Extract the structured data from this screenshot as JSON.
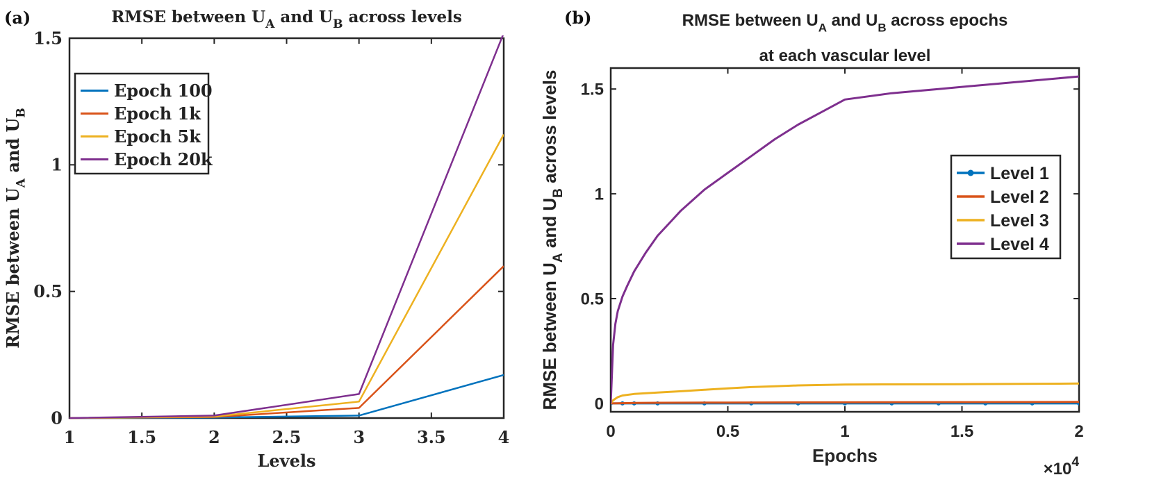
{
  "chart_data": [
    {
      "panel_label": "(a)",
      "type": "line",
      "title": {
        "pre": "RMSE between U",
        "sub1": "A",
        "mid": " and U",
        "sub2": "B",
        "post": " across levels"
      },
      "xlabel": "Levels",
      "ylabel": {
        "pre": "RMSE between U",
        "sub1": "A",
        "mid": " and U",
        "sub2": "B",
        "post": ""
      },
      "xlim": [
        1,
        4
      ],
      "ylim": [
        0,
        1.5
      ],
      "xticks": [
        1,
        1.5,
        2,
        2.5,
        3,
        3.5,
        4
      ],
      "xtick_labels": [
        "1",
        "1.5",
        "2",
        "2.5",
        "3",
        "3.5",
        "4"
      ],
      "yticks": [
        0,
        0.5,
        1,
        1.5
      ],
      "ytick_labels": [
        "0",
        "0.5",
        "1",
        "1.5"
      ],
      "grid": false,
      "legend_position": "upper-left",
      "x": [
        1,
        2,
        3,
        4
      ],
      "series": [
        {
          "name": "Epoch 100",
          "color": "#0072BD",
          "values": [
            0,
            0.002,
            0.01,
            0.17
          ]
        },
        {
          "name": "Epoch 1k",
          "color": "#D95319",
          "values": [
            0,
            0.004,
            0.04,
            0.6
          ]
        },
        {
          "name": "Epoch 5k",
          "color": "#EDB120",
          "values": [
            0,
            0.006,
            0.065,
            1.12
          ]
        },
        {
          "name": "Epoch 20k",
          "color": "#7E2F8E",
          "values": [
            0,
            0.01,
            0.095,
            1.52
          ]
        }
      ]
    },
    {
      "panel_label": "(b)",
      "type": "line",
      "title": {
        "pre": "RMSE between U",
        "sub1": "A",
        "mid": " and U",
        "sub2": "B",
        "post": " across epochs"
      },
      "title_line2": "at each vascular level",
      "xlabel": "Epochs",
      "x_multiplier": {
        "base": "×10",
        "exp": "4"
      },
      "ylabel": {
        "pre": "RMSE between U",
        "sub1": "A",
        "mid": " and U",
        "sub2": "B",
        "post": " across levels"
      },
      "xlim": [
        0,
        20000
      ],
      "ylim": [
        -0.04,
        1.6
      ],
      "xticks": [
        0,
        5000,
        10000,
        15000,
        20000
      ],
      "xtick_labels": [
        "0",
        "0.5",
        "1",
        "1.5",
        "2"
      ],
      "yticks": [
        0,
        0.5,
        1,
        1.5
      ],
      "ytick_labels": [
        "0",
        "0.5",
        "1",
        "1.5"
      ],
      "grid": false,
      "legend_position": "right",
      "series": [
        {
          "name": "Level 1",
          "color": "#0072BD",
          "marker": "dot",
          "x": [
            0,
            500,
            1000,
            2000,
            4000,
            6000,
            8000,
            10000,
            12000,
            14000,
            16000,
            18000,
            20000
          ],
          "values": [
            0,
            0,
            0,
            0,
            0,
            0,
            0,
            0,
            0,
            0,
            0,
            0,
            0
          ]
        },
        {
          "name": "Level 2",
          "color": "#D95319",
          "x": [
            0,
            500,
            1000,
            2000,
            5000,
            10000,
            15000,
            20000
          ],
          "values": [
            0,
            0.001,
            0.002,
            0.003,
            0.004,
            0.005,
            0.006,
            0.007
          ]
        },
        {
          "name": "Level 3",
          "color": "#EDB120",
          "x": [
            0,
            100,
            300,
            500,
            1000,
            2000,
            3000,
            4000,
            5000,
            6000,
            7000,
            8000,
            9000,
            10000,
            12000,
            15000,
            20000
          ],
          "values": [
            0,
            0.015,
            0.03,
            0.038,
            0.045,
            0.052,
            0.058,
            0.065,
            0.072,
            0.078,
            0.082,
            0.086,
            0.088,
            0.09,
            0.091,
            0.092,
            0.095
          ]
        },
        {
          "name": "Level 4",
          "color": "#7E2F8E",
          "x": [
            0,
            100,
            200,
            300,
            500,
            700,
            1000,
            1500,
            2000,
            2500,
            3000,
            4000,
            5000,
            6000,
            7000,
            8000,
            9000,
            10000,
            12000,
            14000,
            16000,
            18000,
            20000
          ],
          "values": [
            0,
            0.28,
            0.38,
            0.44,
            0.51,
            0.56,
            0.63,
            0.72,
            0.8,
            0.86,
            0.92,
            1.02,
            1.1,
            1.18,
            1.26,
            1.33,
            1.39,
            1.45,
            1.48,
            1.5,
            1.52,
            1.54,
            1.56
          ]
        }
      ]
    }
  ]
}
